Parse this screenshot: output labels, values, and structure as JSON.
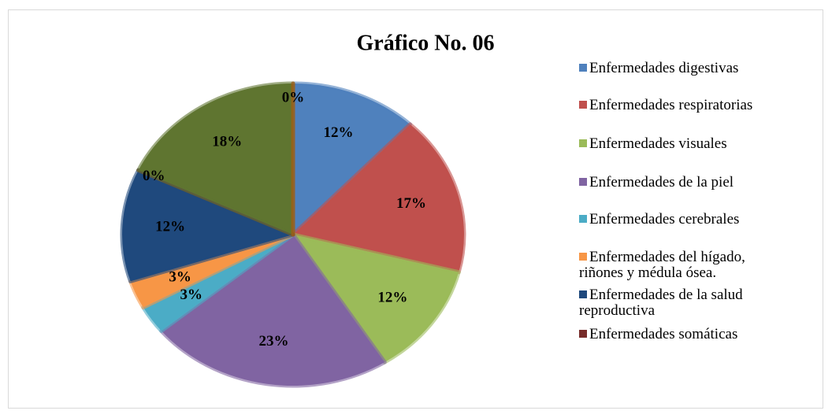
{
  "chart_data": {
    "type": "pie",
    "title": "Gráfico No. 06",
    "categories": [
      "Enfermedades digestivas",
      "Enfermedades respiratorias",
      "Enfermedades visuales",
      "Enfermedades de la piel",
      "Enfermedades cerebrales",
      "Enfermedades del hígado, riñones y médula ósea.",
      "Enfermedades de la salud reproductiva",
      "Enfermedades somáticas",
      null,
      null
    ],
    "values": [
      12,
      17,
      12,
      23,
      3,
      3,
      12,
      0,
      18,
      0
    ],
    "value_labels": [
      "12%",
      "17%",
      "12%",
      "23%",
      "3%",
      "3%",
      "12%",
      "0%",
      "18%",
      "0%"
    ],
    "colors": [
      "#4f81bd",
      "#c0504d",
      "#9bbb59",
      "#8064a2",
      "#4bacc6",
      "#f79646",
      "#1f497d",
      "#772c2a",
      "#5f7530",
      "#b65708"
    ]
  }
}
